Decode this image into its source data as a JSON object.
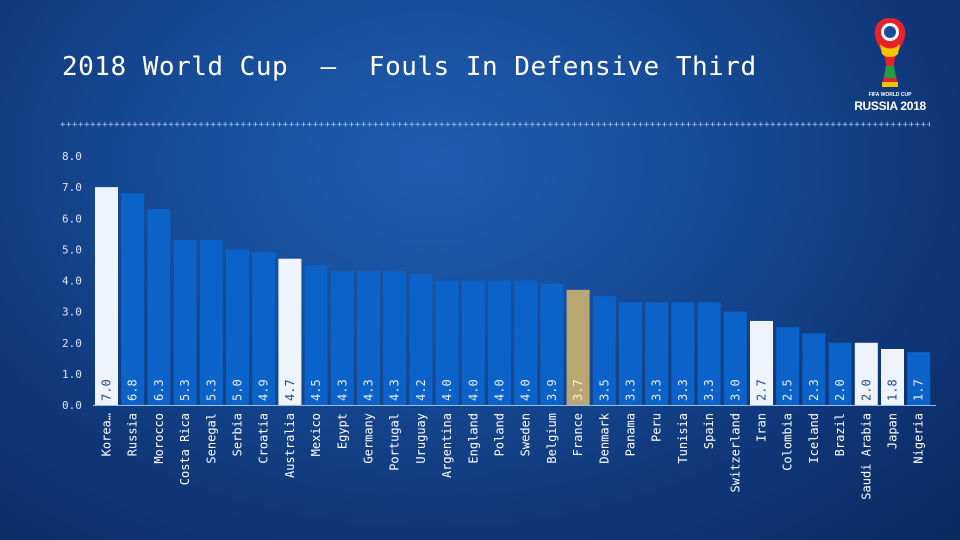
{
  "slide": {
    "title": "2018 World Cup  –  Fouls In Defensive Third",
    "logo_line1": "FIFA WORLD CUP",
    "logo_line2": "RUSSIA 2018"
  },
  "colors": {
    "bar_default": "#0b62c8",
    "bar_highlight": "#eef3fc",
    "bar_france": "#b8a770",
    "label_on_dark": "#e6eefb",
    "label_on_light": "#1a4c9a"
  },
  "chart_data": {
    "type": "bar",
    "categories": [
      "Korea",
      "Russia",
      "Morocco",
      "Costa Rica",
      "Senegal",
      "Serbia",
      "Croatia",
      "Australia",
      "Mexico",
      "Egypt",
      "Germany",
      "Portugal",
      "Uruguay",
      "Argentina",
      "England",
      "Poland",
      "Sweden",
      "Belgium",
      "France",
      "Denmark",
      "Panama",
      "Peru",
      "Tunisia",
      "Spain",
      "Switzerland",
      "Iran",
      "Colombia",
      "Iceland",
      "Brazil",
      "Saudi Arabia",
      "Japan",
      "Nigeria"
    ],
    "category_labels": [
      "Korea…",
      "Russia",
      "Morocco",
      "Costa Rica",
      "Senegal",
      "Serbia",
      "Croatia",
      "Australia",
      "Mexico",
      "Egypt",
      "Germany",
      "Portugal",
      "Uruguay",
      "Argentina",
      "England",
      "Poland",
      "Sweden",
      "Belgium",
      "France",
      "Denmark",
      "Panama",
      "Peru",
      "Tunisia",
      "Spain",
      "Switzerland",
      "Iran",
      "Colombia",
      "Iceland",
      "Brazil",
      "Saudi Arabia",
      "Japan",
      "Nigeria"
    ],
    "values": [
      7.0,
      6.8,
      6.3,
      5.3,
      5.3,
      5.0,
      4.9,
      4.7,
      4.5,
      4.3,
      4.3,
      4.3,
      4.2,
      4.0,
      4.0,
      4.0,
      4.0,
      3.9,
      3.7,
      3.5,
      3.3,
      3.3,
      3.3,
      3.3,
      3.0,
      2.7,
      2.5,
      2.3,
      2.0,
      2.0,
      1.8,
      1.7
    ],
    "value_labels": [
      "7.0",
      "6.8",
      "6.3",
      "5.3",
      "5.3",
      "5.0",
      "4.9",
      "4.7",
      "4.5",
      "4.3",
      "4.3",
      "4.3",
      "4.2",
      "4.0",
      "4.0",
      "4.0",
      "4.0",
      "3.9",
      "3.7",
      "3.5",
      "3.3",
      "3.3",
      "3.3",
      "3.3",
      "3.0",
      "2.7",
      "2.5",
      "2.3",
      "2.0",
      "2.0",
      "1.8",
      "1.7"
    ],
    "highlight": [
      "Korea",
      "Australia",
      "Iran",
      "Saudi Arabia",
      "Japan"
    ],
    "special": {
      "France": "bar_france"
    },
    "ylim": [
      0,
      8
    ],
    "yticks": [
      "0.0",
      "1.0",
      "2.0",
      "3.0",
      "4.0",
      "5.0",
      "6.0",
      "7.0",
      "8.0"
    ],
    "title": "2018 World Cup  –  Fouls In Defensive Third",
    "xlabel": "",
    "ylabel": "",
    "grid": false,
    "legend": "none"
  }
}
